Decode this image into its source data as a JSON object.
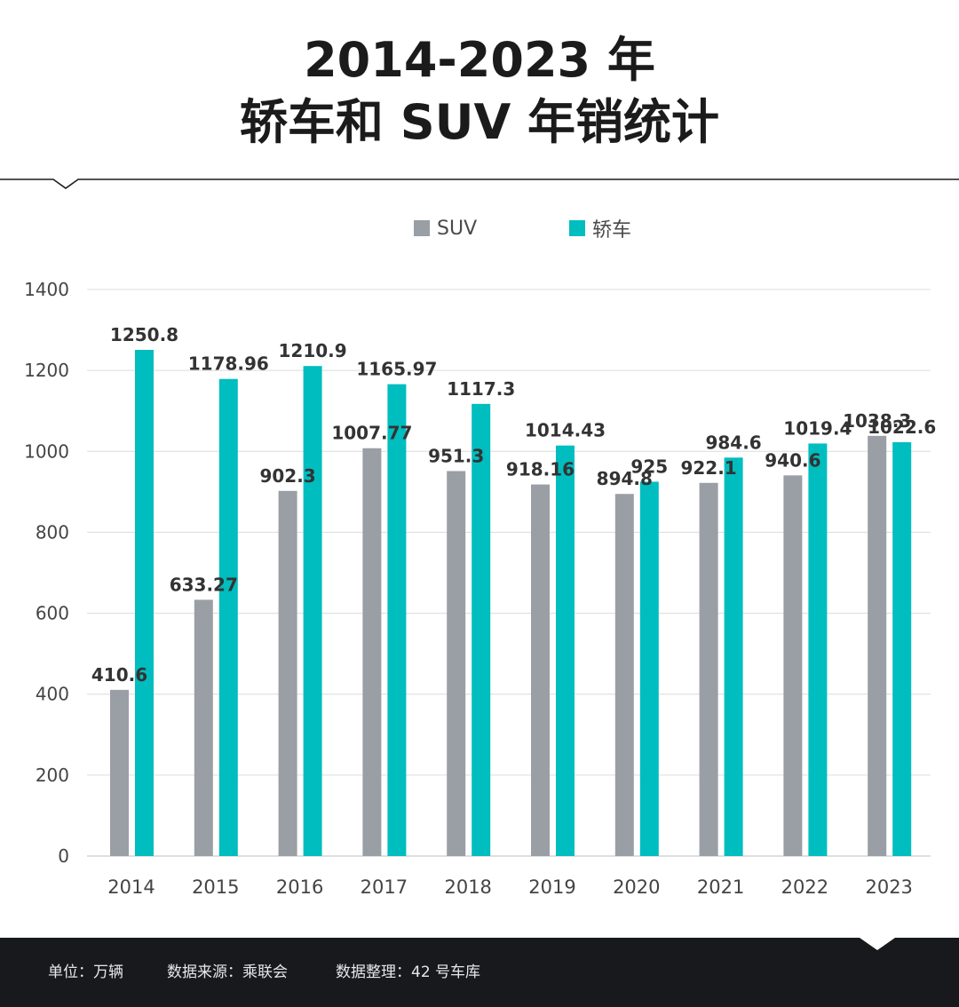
{
  "title": {
    "line1": "2014-2023 年",
    "line2": "轿车和 SUV 年销统计"
  },
  "legend": {
    "suv_label": "SUV",
    "sedan_label": "轿车"
  },
  "colors": {
    "suv": "#9a9ea5",
    "sedan": "#00bdbf",
    "grid": "#dcdcdc",
    "axis_text": "#444444",
    "label_text": "#333333",
    "footer_bg": "#17191c"
  },
  "footer": {
    "unit": "单位：万辆",
    "source": "数据来源：乘联会",
    "compiler": "数据整理：42 号车库"
  },
  "chart_data": {
    "type": "bar",
    "title": "2014-2023 年 轿车和 SUV 年销统计",
    "xlabel": "",
    "ylabel": "",
    "unit": "万辆",
    "categories": [
      "2014",
      "2015",
      "2016",
      "2017",
      "2018",
      "2019",
      "2020",
      "2021",
      "2022",
      "2023"
    ],
    "series": [
      {
        "name": "SUV",
        "values": [
          410.6,
          633.27,
          902.3,
          1007.77,
          951.3,
          918.16,
          894.8,
          922.1,
          940.6,
          1038.3
        ],
        "labels": [
          "410.6",
          "633.27",
          "902.3",
          "1007.77",
          "951.3",
          "918.16",
          "894.8",
          "922.1",
          "940.6",
          "1038.3"
        ]
      },
      {
        "name": "轿车",
        "values": [
          1250.8,
          1178.96,
          1210.9,
          1165.97,
          1117.3,
          1014.43,
          925,
          984.6,
          1019.4,
          1022.6
        ],
        "labels": [
          "1250.8",
          "1178.96",
          "1210.9",
          "1165.97",
          "1117.3",
          "1014.43",
          "925",
          "984.6",
          "1019.4",
          "1022.6"
        ]
      }
    ],
    "ylim": [
      0,
      1400
    ],
    "yticks": [
      0,
      200,
      400,
      600,
      800,
      1000,
      1200,
      1400
    ],
    "grid": true,
    "legend_position": "top-center"
  }
}
